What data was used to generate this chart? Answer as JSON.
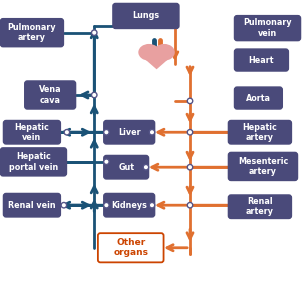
{
  "bg_color": "#ffffff",
  "box_color": "#4a4a7a",
  "box_text_color": "#ffffff",
  "other_organs_box_color": "#ffffff",
  "other_organs_text_color": "#cc4400",
  "other_organs_border_color": "#cc4400",
  "vein_color": "#1a5276",
  "artery_color": "#e07030",
  "node_color": "#ffffff",
  "node_edge_color": "#555588",
  "lw_main": 2.0,
  "boxes": {
    "Lungs": [
      0.38,
      0.915,
      0.2,
      0.065
    ],
    "Pulmonary\nartery": [
      0.01,
      0.855,
      0.19,
      0.075
    ],
    "Pulmonary\nvein": [
      0.78,
      0.875,
      0.2,
      0.065
    ],
    "Heart": [
      0.78,
      0.775,
      0.16,
      0.055
    ],
    "Aorta": [
      0.78,
      0.65,
      0.14,
      0.055
    ],
    "Vena\ncava": [
      0.09,
      0.65,
      0.15,
      0.075
    ],
    "Liver": [
      0.35,
      0.535,
      0.15,
      0.06
    ],
    "Hepatic\nvein": [
      0.02,
      0.535,
      0.17,
      0.06
    ],
    "Hepatic\nartery": [
      0.76,
      0.535,
      0.19,
      0.06
    ],
    "Hepatic\nportal vein": [
      0.01,
      0.43,
      0.2,
      0.075
    ],
    "Gut": [
      0.35,
      0.42,
      0.13,
      0.06
    ],
    "Mesenteric\nartery": [
      0.76,
      0.415,
      0.21,
      0.075
    ],
    "Kidneys": [
      0.35,
      0.295,
      0.15,
      0.06
    ],
    "Renal vein": [
      0.02,
      0.295,
      0.17,
      0.06
    ],
    "Renal\nartery": [
      0.76,
      0.29,
      0.19,
      0.06
    ],
    "Other\norgans": [
      0.33,
      0.145,
      0.2,
      0.08
    ]
  }
}
